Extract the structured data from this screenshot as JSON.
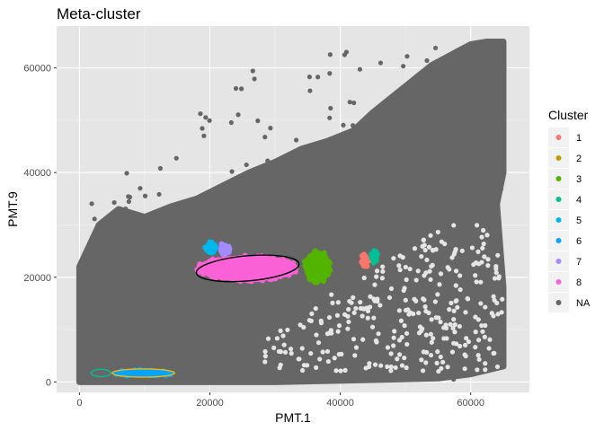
{
  "chart_data": {
    "type": "scatter",
    "title": "Meta-cluster",
    "xlabel": "PMT.1",
    "ylabel": "PMT.9",
    "xlim": [
      -3500,
      69000
    ],
    "ylim": [
      -2000,
      68000
    ],
    "xticks": [
      0,
      20000,
      40000,
      60000
    ],
    "yticks": [
      0,
      20000,
      40000,
      60000
    ],
    "xtick_labels": [
      "0",
      "20000",
      "40000",
      "60000"
    ],
    "ytick_labels": [
      "0",
      "20000",
      "40000",
      "60000"
    ],
    "grid": true,
    "panel_background": "#e5e5e5",
    "legend": {
      "title": "Cluster",
      "position": "right",
      "entries": [
        {
          "label": "1",
          "color": "#f8766d"
        },
        {
          "label": "2",
          "color": "#c49a00"
        },
        {
          "label": "3",
          "color": "#53b400"
        },
        {
          "label": "4",
          "color": "#00c094"
        },
        {
          "label": "5",
          "color": "#00b6eb"
        },
        {
          "label": "6",
          "color": "#06a4ff"
        },
        {
          "label": "7",
          "color": "#a58aff"
        },
        {
          "label": "8",
          "color": "#fb61d7"
        },
        {
          "label": "NA",
          "color": "#666666"
        }
      ]
    },
    "series": [
      {
        "name": "NA",
        "color": "#666666",
        "hull": [
          [
            0,
            0
          ],
          [
            0,
            14000
          ],
          [
            0,
            22000
          ],
          [
            3000,
            30000
          ],
          [
            6000,
            33000
          ],
          [
            10000,
            31500
          ],
          [
            14000,
            33500
          ],
          [
            18000,
            35000
          ],
          [
            22000,
            37500
          ],
          [
            26000,
            40000
          ],
          [
            30000,
            42000
          ],
          [
            34000,
            44500
          ],
          [
            38000,
            46000
          ],
          [
            42000,
            48000
          ],
          [
            45000,
            51500
          ],
          [
            48000,
            54500
          ],
          [
            51000,
            57500
          ],
          [
            54000,
            60500
          ],
          [
            57000,
            62500
          ],
          [
            60000,
            64500
          ],
          [
            62500,
            65000
          ],
          [
            65000,
            65000
          ],
          [
            65000,
            58000
          ],
          [
            65000,
            50000
          ],
          [
            65000,
            40000
          ],
          [
            64000,
            34000
          ],
          [
            64500,
            26000
          ],
          [
            65000,
            18000
          ],
          [
            65000,
            10000
          ],
          [
            65000,
            3000
          ],
          [
            60000,
            1500
          ],
          [
            55000,
            700
          ],
          [
            45000,
            400
          ],
          [
            30000,
            0
          ],
          [
            15000,
            0
          ]
        ]
      },
      {
        "name": "1",
        "color": "#f8766d",
        "center": [
          43800,
          23200
        ],
        "radius": [
          700,
          1300
        ]
      },
      {
        "name": "2",
        "color": "#c49a00",
        "center": [
          36500,
          22000
        ],
        "radius": [
          1800,
          2800
        ]
      },
      {
        "name": "3",
        "color": "#53b400",
        "center": [
          36500,
          22000
        ],
        "radius": [
          2100,
          3100
        ]
      },
      {
        "name": "4",
        "color": "#00c094",
        "center": [
          45200,
          24000
        ],
        "radius": [
          500,
          1300
        ]
      },
      {
        "name": "5",
        "color": "#00b6eb",
        "center": [
          20200,
          25600
        ],
        "radius": [
          1000,
          1400
        ]
      },
      {
        "name": "6",
        "color": "#06a4ff",
        "center": [
          9800,
          1700
        ],
        "radius": [
          4700,
          700
        ]
      },
      {
        "name": "7",
        "color": "#a58aff",
        "center": [
          22200,
          25300
        ],
        "radius": [
          900,
          1300
        ]
      },
      {
        "name": "8",
        "color": "#fb61d7",
        "center": [
          25800,
          21700
        ],
        "radius": [
          7800,
          2500
        ]
      }
    ],
    "ellipses": [
      {
        "name": "4",
        "color": "#00c094",
        "center": [
          3300,
          1700
        ],
        "radius": [
          1500,
          700
        ],
        "tilt_deg": 0
      },
      {
        "name": "6",
        "color": "#f5b800",
        "center": [
          9800,
          1700
        ],
        "radius": [
          4800,
          800
        ],
        "tilt_deg": 0
      },
      {
        "name": "8",
        "color": "#000000",
        "center": [
          25800,
          21700
        ],
        "radius": [
          7900,
          2400
        ],
        "tilt_deg": -5
      }
    ]
  }
}
